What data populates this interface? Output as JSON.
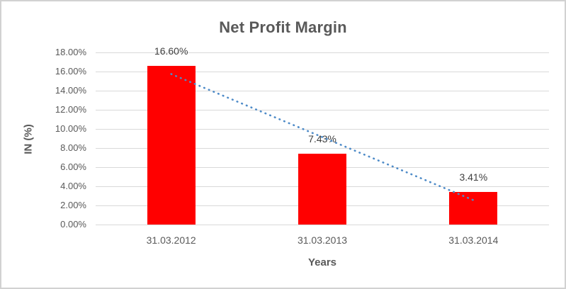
{
  "chart_data": {
    "type": "bar",
    "title": "Net Profit Margin",
    "xlabel": "Years",
    "ylabel": "IN (%)",
    "categories": [
      "31.03.2012",
      "31.03.2013",
      "31.03.2014"
    ],
    "values": [
      16.6,
      7.43,
      3.41
    ],
    "data_labels": [
      "16.60%",
      "7.43%",
      "3.41%"
    ],
    "ylim": [
      0,
      18
    ],
    "ytick_step": 2,
    "ytick_labels": [
      "0.00%",
      "2.00%",
      "4.00%",
      "6.00%",
      "8.00%",
      "10.00%",
      "12.00%",
      "14.00%",
      "16.00%",
      "18.00%"
    ],
    "grid": true,
    "legend": "none",
    "trendline": {
      "type": "linear",
      "style": "dotted",
      "start_value": 15.74,
      "end_value": 2.55
    }
  },
  "colors": {
    "bar": "#ff0000",
    "trendline": "#4e8bc8",
    "gridline": "#d9d9d9",
    "title_text": "#595959",
    "tick_text": "#595959",
    "data_label_text": "#404040",
    "background": "#ffffff",
    "border": "#d1d1d1"
  }
}
